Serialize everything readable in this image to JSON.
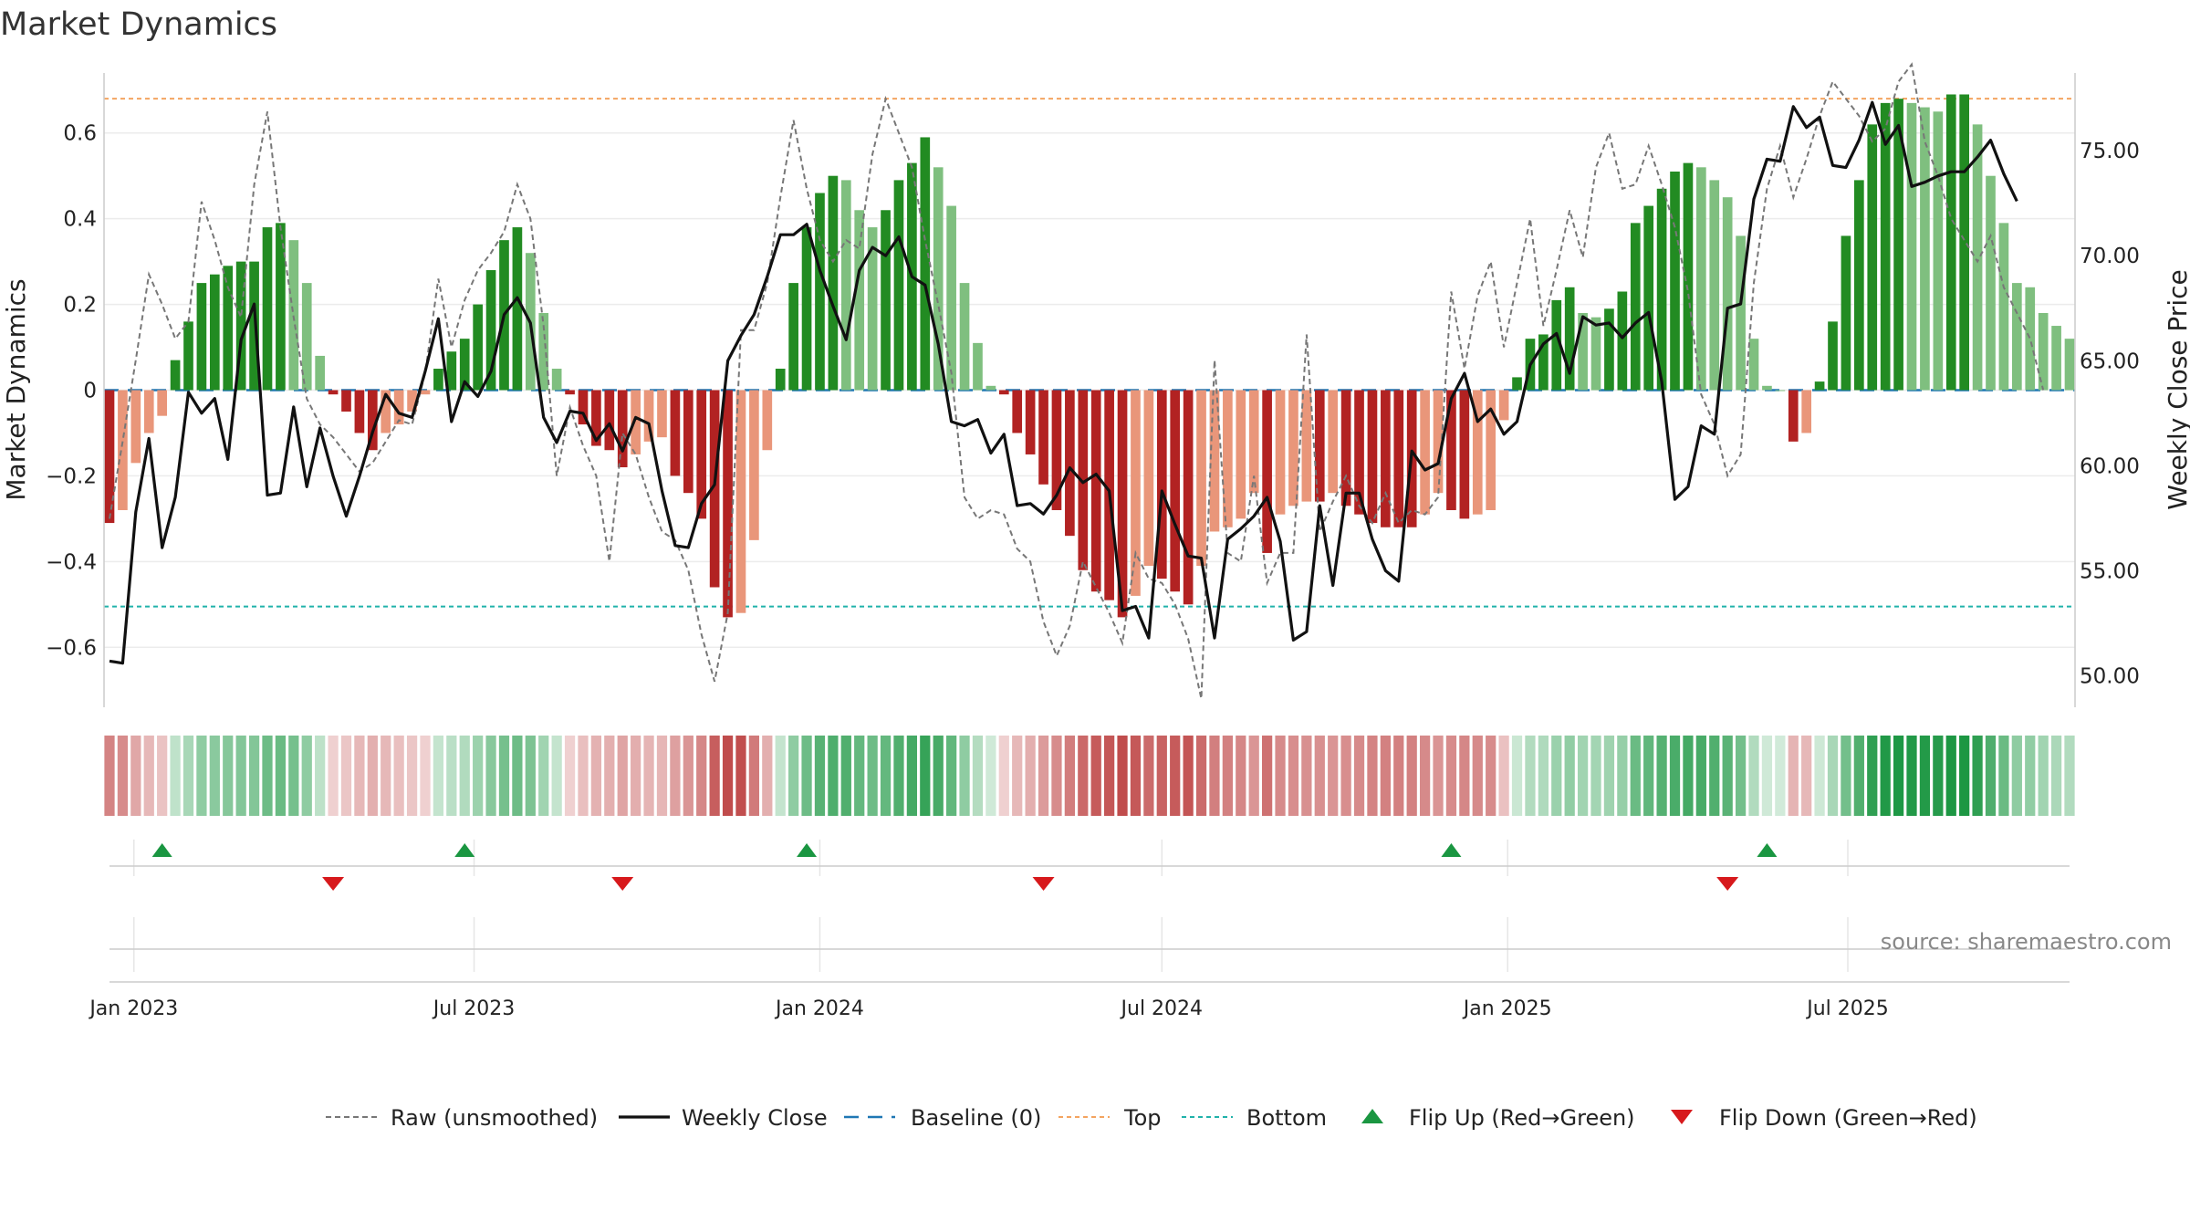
{
  "chart_data": {
    "type": "bar",
    "title": "Market Dynamics",
    "ylabel_left": "Market Dynamics",
    "ylabel_right": "Weekly Close Price",
    "source": "source: sharemaestro.com",
    "x_start": "2022-12-19",
    "x_step_days": 7,
    "ylim_left": [
      -0.74,
      0.74
    ],
    "ylim_right": [
      48.5,
      78.7
    ],
    "left_ticks": [
      {
        "v": 0.6,
        "label": "0.6"
      },
      {
        "v": 0.4,
        "label": "0.4"
      },
      {
        "v": 0.2,
        "label": "0.2"
      },
      {
        "v": 0,
        "label": "0"
      },
      {
        "v": -0.2,
        "label": "−0.2"
      },
      {
        "v": -0.4,
        "label": "−0.4"
      },
      {
        "v": -0.6,
        "label": "−0.6"
      }
    ],
    "right_ticks": [
      {
        "v": 75,
        "label": "75.00"
      },
      {
        "v": 70,
        "label": "70.00"
      },
      {
        "v": 65,
        "label": "65.00"
      },
      {
        "v": 60,
        "label": "60.00"
      },
      {
        "v": 55,
        "label": "55.00"
      },
      {
        "v": 50,
        "label": "50.00"
      }
    ],
    "x_ticks": [
      {
        "date": "2023-01-01",
        "label": "Jan 2023"
      },
      {
        "date": "2023-07-01",
        "label": "Jul 2023"
      },
      {
        "date": "2024-01-01",
        "label": "Jan 2024"
      },
      {
        "date": "2024-07-01",
        "label": "Jul 2024"
      },
      {
        "date": "2025-01-01",
        "label": "Jan 2025"
      },
      {
        "date": "2025-07-01",
        "label": "Jul 2025"
      }
    ],
    "top_line": 0.68,
    "bottom_line": -0.505,
    "baseline": 0,
    "flips_up": [
      "2023-01-16",
      "2023-06-26",
      "2023-12-25",
      "2024-12-02",
      "2025-05-19"
    ],
    "flips_down": [
      "2023-04-17",
      "2023-09-18",
      "2024-04-29",
      "2025-04-28"
    ],
    "dynamics": [
      -0.31,
      -0.28,
      -0.17,
      -0.1,
      -0.06,
      0.07,
      0.16,
      0.25,
      0.27,
      0.29,
      0.3,
      0.3,
      0.38,
      0.39,
      0.35,
      0.25,
      0.08,
      -0.01,
      -0.05,
      -0.1,
      -0.14,
      -0.1,
      -0.08,
      -0.05,
      -0.01,
      0.05,
      0.09,
      0.12,
      0.2,
      0.28,
      0.35,
      0.38,
      0.32,
      0.18,
      0.05,
      -0.01,
      -0.08,
      -0.13,
      -0.14,
      -0.18,
      -0.15,
      -0.12,
      -0.11,
      -0.2,
      -0.24,
      -0.3,
      -0.46,
      -0.53,
      -0.52,
      -0.35,
      -0.14,
      0.05,
      0.25,
      0.38,
      0.46,
      0.5,
      0.49,
      0.42,
      0.38,
      0.42,
      0.49,
      0.53,
      0.59,
      0.52,
      0.43,
      0.25,
      0.11,
      0.01,
      -0.01,
      -0.1,
      -0.15,
      -0.22,
      -0.28,
      -0.34,
      -0.42,
      -0.47,
      -0.49,
      -0.53,
      -0.48,
      -0.41,
      -0.44,
      -0.47,
      -0.5,
      -0.41,
      -0.33,
      -0.32,
      -0.3,
      -0.24,
      -0.38,
      -0.29,
      -0.27,
      -0.26,
      -0.26,
      -0.24,
      -0.27,
      -0.29,
      -0.31,
      -0.32,
      -0.32,
      -0.32,
      -0.29,
      -0.24,
      -0.28,
      -0.3,
      -0.29,
      -0.28,
      -0.07,
      0.03,
      0.12,
      0.13,
      0.21,
      0.24,
      0.18,
      0.17,
      0.19,
      0.23,
      0.39,
      0.43,
      0.47,
      0.51,
      0.53,
      0.52,
      0.49,
      0.45,
      0.36,
      0.12,
      0.01,
      0.0,
      -0.12,
      -0.1,
      0.02,
      0.16,
      0.36,
      0.49,
      0.62,
      0.67,
      0.68,
      0.67,
      0.66,
      0.65,
      0.69,
      0.69,
      0.62,
      0.5,
      0.39,
      0.25,
      0.24,
      0.18,
      0.15,
      0.12
    ],
    "raw": [
      -0.3,
      -0.12,
      0.07,
      0.27,
      0.2,
      0.12,
      0.16,
      0.44,
      0.35,
      0.24,
      0.17,
      0.48,
      0.65,
      0.38,
      0.17,
      -0.02,
      -0.08,
      -0.11,
      -0.15,
      -0.19,
      -0.17,
      -0.12,
      -0.07,
      -0.08,
      0.04,
      0.26,
      0.1,
      0.21,
      0.28,
      0.32,
      0.37,
      0.48,
      0.4,
      0.15,
      -0.2,
      -0.04,
      -0.13,
      -0.2,
      -0.4,
      -0.1,
      -0.15,
      -0.25,
      -0.33,
      -0.35,
      -0.42,
      -0.57,
      -0.68,
      -0.52,
      0.14,
      0.14,
      0.25,
      0.45,
      0.63,
      0.47,
      0.35,
      0.3,
      0.35,
      0.33,
      0.55,
      0.68,
      0.6,
      0.52,
      0.35,
      0.2,
      0.04,
      -0.25,
      -0.3,
      -0.28,
      -0.29,
      -0.37,
      -0.4,
      -0.54,
      -0.62,
      -0.55,
      -0.4,
      -0.46,
      -0.52,
      -0.59,
      -0.38,
      -0.44,
      -0.45,
      -0.5,
      -0.58,
      -0.72,
      0.07,
      -0.38,
      -0.4,
      -0.2,
      -0.45,
      -0.38,
      -0.38,
      0.13,
      -0.33,
      -0.26,
      -0.2,
      -0.27,
      -0.31,
      -0.24,
      -0.31,
      -0.28,
      -0.29,
      -0.25,
      0.23,
      0.05,
      0.22,
      0.3,
      0.1,
      0.25,
      0.4,
      0.15,
      0.28,
      0.42,
      0.31,
      0.52,
      0.6,
      0.47,
      0.48,
      0.57,
      0.48,
      0.38,
      0.23,
      -0.01,
      -0.08,
      -0.2,
      -0.15,
      0.25,
      0.47,
      0.57,
      0.45,
      0.54,
      0.64,
      0.72,
      0.68,
      0.64,
      0.58,
      0.61,
      0.72,
      0.76,
      0.58,
      0.5,
      0.4,
      0.35,
      0.3,
      0.36,
      0.24,
      0.18,
      0.12,
      0.0
    ],
    "close": [
      50.7,
      50.6,
      57.8,
      61.3,
      56.1,
      58.5,
      63.5,
      62.5,
      63.2,
      60.3,
      66.0,
      67.7,
      58.6,
      58.7,
      62.8,
      59.0,
      61.8,
      59.5,
      57.6,
      59.5,
      61.6,
      63.4,
      62.5,
      62.3,
      64.5,
      67.0,
      62.1,
      64.0,
      63.3,
      64.5,
      67.2,
      68.0,
      66.8,
      62.3,
      61.1,
      62.6,
      62.5,
      61.2,
      62.0,
      60.7,
      62.3,
      62.0,
      58.8,
      56.2,
      56.1,
      58.2,
      59.1,
      65.0,
      66.2,
      67.2,
      69.0,
      71.0,
      71.0,
      71.5,
      69.3,
      67.6,
      66.0,
      69.3,
      70.4,
      70.0,
      70.9,
      69.0,
      68.6,
      65.8,
      62.1,
      61.9,
      62.2,
      60.6,
      61.5,
      58.1,
      58.2,
      57.7,
      58.6,
      59.9,
      59.2,
      59.6,
      58.8,
      53.1,
      53.3,
      51.8,
      58.8,
      57.2,
      55.7,
      55.6,
      51.8,
      56.5,
      57.0,
      57.6,
      58.5,
      56.4,
      51.7,
      52.1,
      58.1,
      54.3,
      58.7,
      58.7,
      56.5,
      55.0,
      54.5,
      60.7,
      59.8,
      60.1,
      63.2,
      64.4,
      62.1,
      62.7,
      61.5,
      62.1,
      64.8,
      65.8,
      66.3,
      64.4,
      67.1,
      66.7,
      66.8,
      66.1,
      66.8,
      67.3,
      64.0,
      58.4,
      59.0,
      61.9,
      61.5,
      67.5,
      67.7,
      72.7,
      74.6,
      74.5,
      77.1,
      76.1,
      76.6,
      74.3,
      74.2,
      75.5,
      77.3,
      75.3,
      76.2,
      73.3,
      73.5,
      73.8,
      74.0,
      74.0,
      74.7,
      75.5,
      73.9,
      72.6
    ]
  },
  "legend": [
    {
      "label": "Raw (unsmoothed)",
      "kind": "raw"
    },
    {
      "label": "Weekly Close",
      "kind": "close"
    },
    {
      "label": "Baseline (0)",
      "kind": "baseline"
    },
    {
      "label": "Top",
      "kind": "top"
    },
    {
      "label": "Bottom",
      "kind": "bottom"
    },
    {
      "label": "Flip Up (Red→Green)",
      "kind": "up"
    },
    {
      "label": "Flip Down (Green→Red)",
      "kind": "down"
    }
  ],
  "colors": {
    "green_dark": "#228b22",
    "green_light": "#7fbf7f",
    "red_dark": "#b22222",
    "red_light": "#e9967a",
    "flip_up": "#1a9641",
    "flip_down": "#d7191c",
    "top": "#f4a460",
    "bottom": "#20b2aa",
    "baseline": "#1f77b4",
    "raw": "#777777",
    "close": "#111111"
  }
}
